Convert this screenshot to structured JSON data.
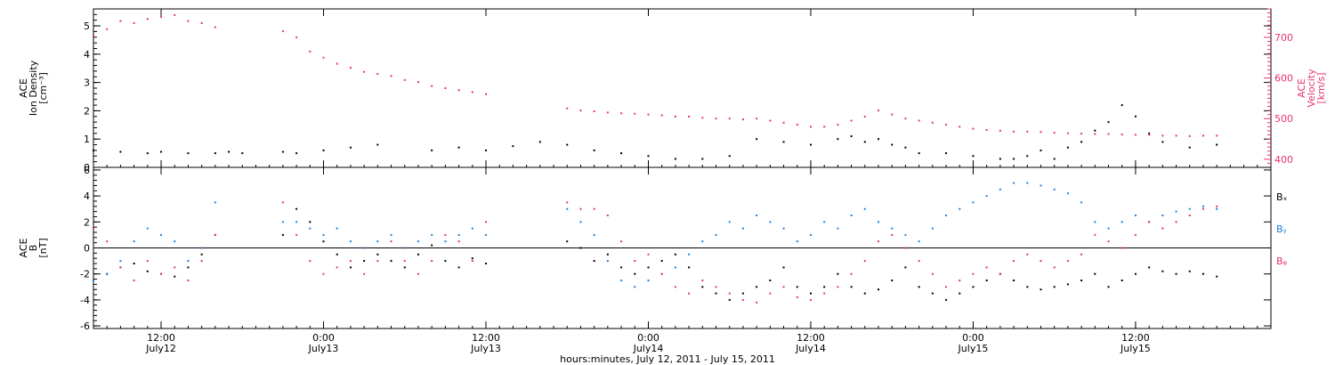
{
  "chart_data": [
    {
      "type": "scatter",
      "panel": "plasma",
      "left_axis": {
        "label_lines": [
          "ACE",
          "Ion Density",
          "[cm⁻³]"
        ],
        "range": [
          0,
          5.6
        ],
        "ticks": [
          "0",
          "1",
          "2",
          "3",
          "4",
          "5"
        ],
        "color": "#000000"
      },
      "right_axis": {
        "label_lines": [
          "ACE",
          "Velocity",
          "[km/s]"
        ],
        "range": [
          380,
          770
        ],
        "ticks": [
          "400",
          "500",
          "600",
          "700"
        ],
        "color": "#e8336a"
      },
      "series": [
        {
          "axis": "left",
          "color": "#000000",
          "x": [
            7,
            9,
            11,
            12,
            14,
            16,
            17,
            18,
            21,
            22,
            24,
            26,
            28,
            32,
            34,
            36,
            38,
            40,
            42,
            44,
            46,
            48,
            50,
            52,
            54,
            56,
            58,
            60,
            62,
            63,
            64,
            65,
            66,
            67,
            68,
            70,
            72,
            74,
            75,
            76,
            77,
            78,
            79,
            80,
            81,
            82,
            83,
            84,
            85,
            86,
            88,
            90
          ],
          "y": [
            0.6,
            0.55,
            0.5,
            0.55,
            0.5,
            0.5,
            0.55,
            0.5,
            0.55,
            0.5,
            0.6,
            0.7,
            0.8,
            0.6,
            0.7,
            0.6,
            0.75,
            0.9,
            0.8,
            0.6,
            0.5,
            0.4,
            0.3,
            0.3,
            0.4,
            1.0,
            0.9,
            0.8,
            1.0,
            1.1,
            0.9,
            1.0,
            0.8,
            0.7,
            0.5,
            0.5,
            0.4,
            0.3,
            0.3,
            0.4,
            0.6,
            0.3,
            0.7,
            0.9,
            1.3,
            1.6,
            2.2,
            1.8,
            1.2,
            0.9,
            0.7,
            0.8
          ]
        },
        {
          "axis": "right",
          "color": "#e8336a",
          "x": [
            7,
            8,
            9,
            10,
            11,
            12,
            13,
            14,
            15,
            16,
            21,
            22,
            23,
            24,
            25,
            26,
            27,
            28,
            29,
            30,
            31,
            32,
            33,
            34,
            35,
            36,
            42,
            43,
            44,
            45,
            46,
            47,
            48,
            49,
            50,
            51,
            52,
            53,
            54,
            55,
            56,
            57,
            58,
            59,
            60,
            61,
            62,
            63,
            64,
            65,
            66,
            67,
            68,
            69,
            70,
            71,
            72,
            73,
            74,
            75,
            76,
            77,
            78,
            79,
            80,
            81,
            82,
            83,
            84,
            85,
            86,
            87,
            88,
            89,
            90
          ],
          "y": [
            705,
            720,
            740,
            735,
            745,
            750,
            755,
            740,
            735,
            725,
            715,
            700,
            665,
            650,
            635,
            625,
            615,
            610,
            605,
            595,
            590,
            580,
            575,
            570,
            565,
            560,
            525,
            520,
            518,
            515,
            513,
            512,
            510,
            508,
            505,
            505,
            502,
            500,
            500,
            498,
            500,
            495,
            490,
            485,
            480,
            480,
            485,
            495,
            505,
            520,
            510,
            500,
            495,
            490,
            485,
            480,
            475,
            472,
            470,
            468,
            468,
            467,
            465,
            464,
            463,
            462,
            462,
            461,
            460,
            460,
            458,
            458,
            457,
            458,
            458
          ]
        }
      ]
    },
    {
      "type": "scatter",
      "panel": "magnetic field",
      "left_axis": {
        "label_lines": [
          "ACE",
          "B",
          "[nT]"
        ],
        "range": [
          -6.2,
          6.2
        ],
        "ticks": [
          "-6",
          "-4",
          "-2",
          "0",
          "2",
          "4",
          "6"
        ],
        "color": "#000000"
      },
      "legend": [
        "Bₓ",
        "Bᵧ",
        "Bᵩ"
      ],
      "series": [
        {
          "name": "Bₓ",
          "color": "#000000",
          "x": [
            7,
            8,
            9,
            10,
            11,
            12,
            13,
            14,
            15,
            16,
            21,
            22,
            23,
            24,
            25,
            26,
            27,
            28,
            29,
            30,
            31,
            32,
            33,
            34,
            35,
            36,
            42,
            43,
            44,
            45,
            46,
            47,
            48,
            49,
            50,
            51,
            52,
            53,
            54,
            55,
            56,
            57,
            58,
            59,
            60,
            61,
            62,
            63,
            64,
            65,
            66,
            67,
            68,
            69,
            70,
            71,
            72,
            73,
            74,
            75,
            76,
            77,
            78,
            79,
            80,
            81,
            82,
            83,
            84,
            85,
            86,
            87,
            88,
            89,
            90
          ],
          "y": [
            -2.5,
            -2.0,
            -1.5,
            -1.2,
            -1.8,
            -2.0,
            -2.2,
            -1.5,
            -0.5,
            1.0,
            1.0,
            3.0,
            2.0,
            0.5,
            -0.5,
            -1.5,
            -1.0,
            -0.5,
            -1.0,
            -1.5,
            -0.5,
            0.2,
            -1.0,
            -1.5,
            -0.8,
            -1.2,
            0.5,
            0.0,
            -1.0,
            -0.5,
            -1.5,
            -2.0,
            -1.5,
            -1.0,
            -0.5,
            -1.5,
            -3.0,
            -3.5,
            -4.0,
            -3.5,
            -3.0,
            -2.5,
            -1.5,
            -3.0,
            -3.5,
            -3.0,
            -2.0,
            -3.0,
            -3.5,
            -3.2,
            -2.5,
            -1.5,
            -3.0,
            -3.5,
            -4.0,
            -3.5,
            -3.0,
            -2.5,
            -2.0,
            -2.5,
            -3.0,
            -3.2,
            -3.0,
            -2.8,
            -2.5,
            -2.0,
            -3.0,
            -2.5,
            -2.0,
            -1.5,
            -1.8,
            -2.0,
            -1.8,
            -2.0,
            -2.2
          ]
        },
        {
          "name": "Bᵧ",
          "color": "#1f7fe0",
          "x": [
            7,
            8,
            9,
            10,
            11,
            12,
            13,
            14,
            15,
            16,
            21,
            22,
            23,
            24,
            25,
            26,
            27,
            28,
            29,
            30,
            31,
            32,
            33,
            34,
            35,
            36,
            42,
            43,
            44,
            45,
            46,
            47,
            48,
            49,
            50,
            51,
            52,
            53,
            54,
            55,
            56,
            57,
            58,
            59,
            60,
            61,
            62,
            63,
            64,
            65,
            66,
            67,
            68,
            69,
            70,
            71,
            72,
            73,
            74,
            75,
            76,
            77,
            78,
            79,
            80,
            81,
            82,
            83,
            84,
            85,
            86,
            87,
            88,
            89,
            90
          ],
          "y": [
            -2.5,
            -2.0,
            -1.0,
            0.5,
            1.5,
            1.0,
            0.5,
            -1.0,
            0.0,
            3.5,
            2.0,
            2.0,
            1.5,
            1.0,
            1.5,
            0.5,
            0.0,
            0.5,
            1.0,
            0.0,
            0.5,
            1.0,
            0.5,
            1.0,
            1.5,
            1.0,
            3.0,
            2.0,
            1.0,
            -1.0,
            -2.5,
            -3.0,
            -2.5,
            -2.0,
            -1.5,
            -0.5,
            0.5,
            1.0,
            2.0,
            1.5,
            2.5,
            2.0,
            1.5,
            0.5,
            1.0,
            2.0,
            1.5,
            2.5,
            3.0,
            2.0,
            1.5,
            1.0,
            0.5,
            1.5,
            2.5,
            3.0,
            3.5,
            4.0,
            4.5,
            5.0,
            5.0,
            4.8,
            4.5,
            4.2,
            3.5,
            2.0,
            1.5,
            2.0,
            2.5,
            2.0,
            2.5,
            2.8,
            3.0,
            3.2,
            3.0
          ]
        },
        {
          "name": "Bᵩ",
          "color": "#e8336a",
          "x": [
            7,
            8,
            9,
            10,
            11,
            12,
            13,
            14,
            15,
            16,
            21,
            22,
            23,
            24,
            25,
            26,
            27,
            28,
            29,
            30,
            31,
            32,
            33,
            34,
            35,
            36,
            42,
            43,
            44,
            45,
            46,
            47,
            48,
            49,
            50,
            51,
            52,
            53,
            54,
            55,
            56,
            57,
            58,
            59,
            60,
            61,
            62,
            63,
            64,
            65,
            66,
            67,
            68,
            69,
            70,
            71,
            72,
            73,
            74,
            75,
            76,
            77,
            78,
            79,
            80,
            81,
            82,
            83,
            84,
            85,
            86,
            87,
            88,
            89,
            90
          ],
          "y": [
            1.5,
            0.5,
            -1.5,
            -2.5,
            -1.0,
            -2.0,
            -1.5,
            -2.5,
            -1.0,
            1.0,
            3.5,
            1.0,
            -1.0,
            -2.0,
            -1.5,
            -1.0,
            -2.0,
            -1.0,
            0.5,
            -1.0,
            -2.0,
            -1.0,
            1.0,
            0.5,
            -1.0,
            2.0,
            3.5,
            3.0,
            3.0,
            2.5,
            0.5,
            -1.0,
            -0.5,
            -2.0,
            -3.0,
            -3.5,
            -2.5,
            -3.0,
            -3.5,
            -4.0,
            -4.2,
            -3.5,
            -3.0,
            -3.8,
            -4.0,
            -3.5,
            -3.0,
            -2.0,
            -1.0,
            0.5,
            1.0,
            0.0,
            -1.0,
            -2.0,
            -3.0,
            -2.5,
            -2.0,
            -1.5,
            -2.0,
            -1.0,
            -0.5,
            -1.0,
            -1.5,
            -1.0,
            -0.5,
            1.0,
            0.5,
            0.0,
            1.0,
            2.0,
            1.5,
            2.0,
            2.5,
            3.0,
            3.2
          ]
        }
      ]
    }
  ],
  "x_axis": {
    "range": [
      7,
      94
    ],
    "ticks": [
      {
        "x": 12,
        "time": "12:00",
        "date": "July12"
      },
      {
        "x": 24,
        "time": "0:00",
        "date": "July13"
      },
      {
        "x": 36,
        "time": "12:00",
        "date": "July13"
      },
      {
        "x": 48,
        "time": "0:00",
        "date": "July14"
      },
      {
        "x": 60,
        "time": "12:00",
        "date": "July14"
      },
      {
        "x": 72,
        "time": "0:00",
        "date": "July15"
      },
      {
        "x": 84,
        "time": "12:00",
        "date": "July15"
      }
    ],
    "title": "hours:minutes, July 12, 2011 - July 15, 2011"
  }
}
